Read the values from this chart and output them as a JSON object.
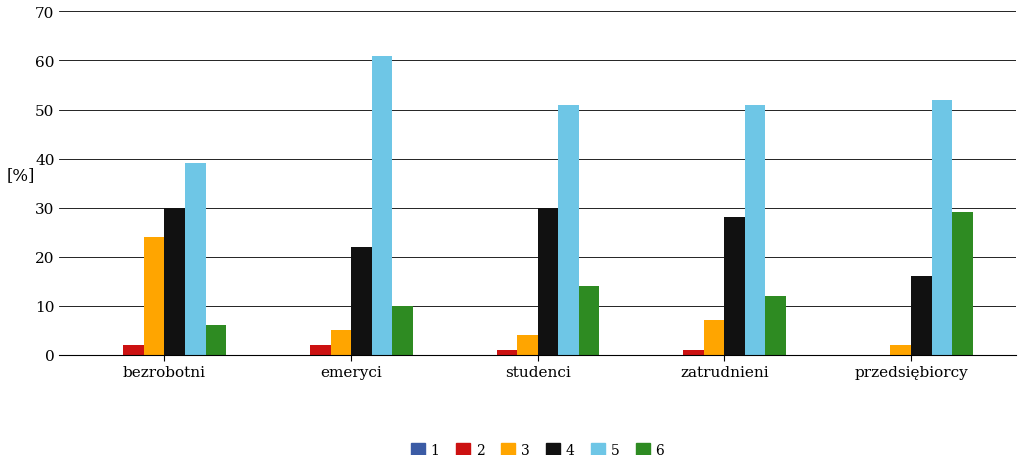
{
  "categories": [
    "bezrobotni",
    "emeryci",
    "studenci",
    "zatrudnieni",
    "przedsiębiorcy"
  ],
  "series": {
    "1": [
      0,
      0,
      0,
      0,
      0
    ],
    "2": [
      2,
      2,
      1,
      1,
      0
    ],
    "3": [
      24,
      5,
      4,
      7,
      2
    ],
    "4": [
      30,
      22,
      30,
      28,
      16
    ],
    "5": [
      39,
      61,
      51,
      51,
      52
    ],
    "6": [
      6,
      10,
      14,
      12,
      29
    ]
  },
  "colors": {
    "1": "#3B5BA5",
    "2": "#CC1111",
    "3": "#FFA500",
    "4": "#111111",
    "5": "#6EC6E6",
    "6": "#2E8B22"
  },
  "ylabel": "[%]",
  "ylim": [
    0,
    70
  ],
  "yticks": [
    0,
    10,
    20,
    30,
    40,
    50,
    60,
    70
  ],
  "background_color": "#FFFFFF",
  "bar_width": 0.11,
  "axis_fontsize": 11,
  "legend_fontsize": 10
}
